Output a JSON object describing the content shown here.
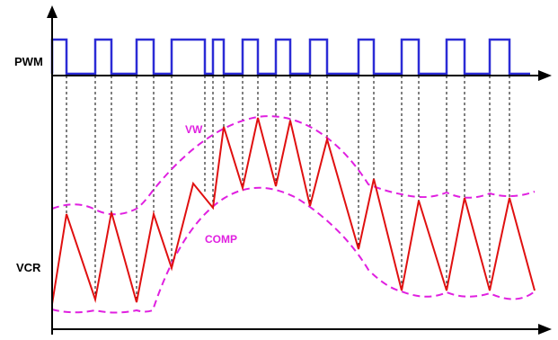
{
  "labels": {
    "pwm": "PWM",
    "vcr": "VCR",
    "vw": "VW",
    "comp": "COMP"
  },
  "colors": {
    "axis": "#000000",
    "pwm": "#2b2bd6",
    "vcr": "#e01010",
    "envelope": "#e020e0",
    "guide": "#000000",
    "background": "#ffffff"
  }
}
